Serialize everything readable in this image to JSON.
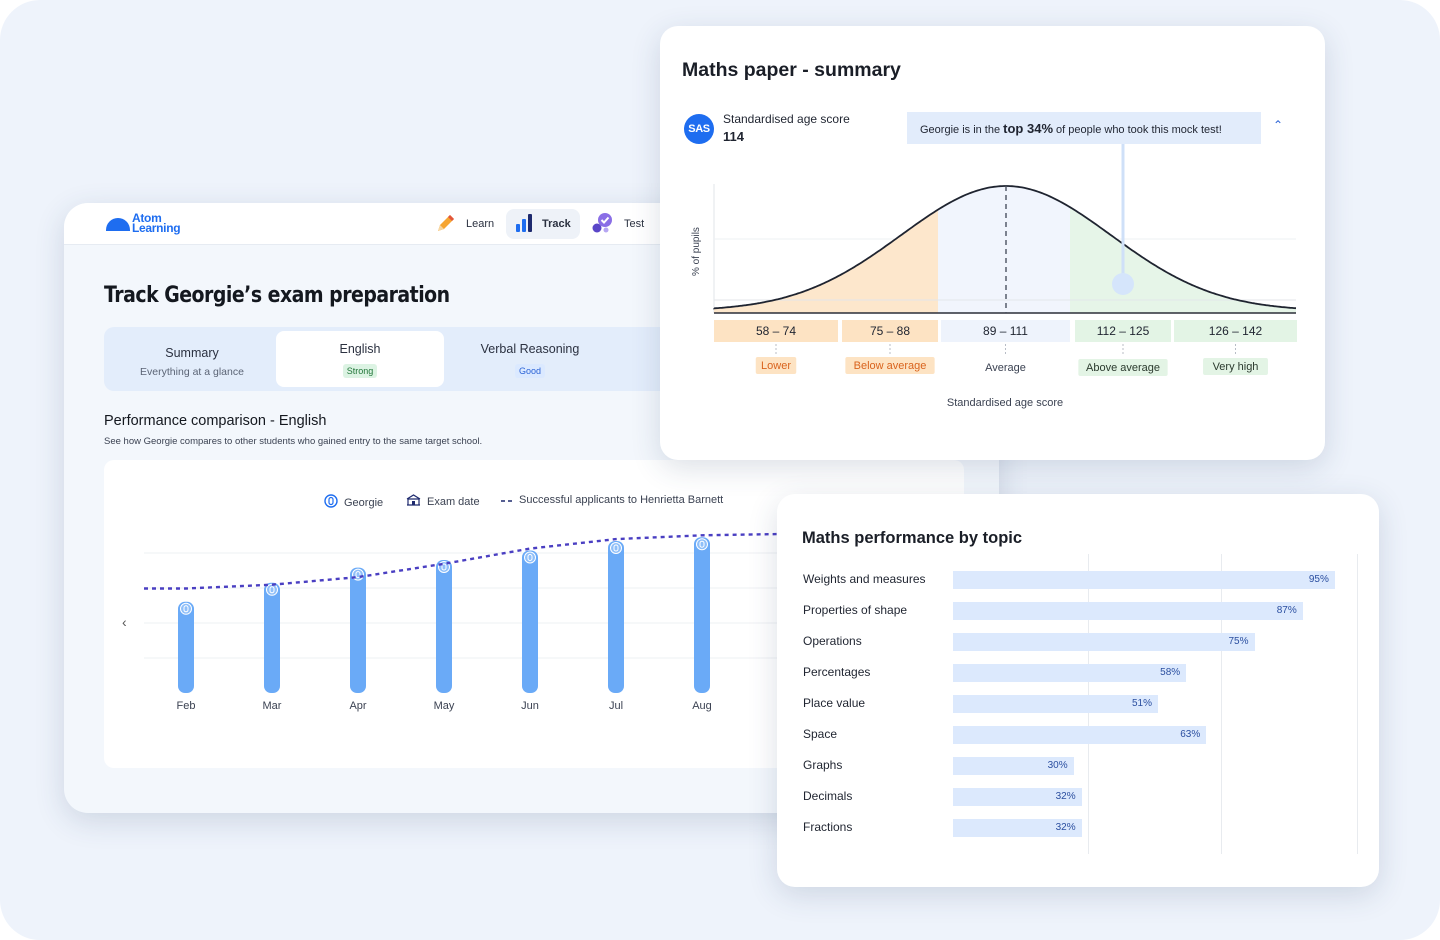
{
  "app": {
    "logo": {
      "line1": "Atom",
      "line2": "Learning"
    },
    "nav": [
      {
        "label": "Learn",
        "icon": "pencil-icon",
        "active": false
      },
      {
        "label": "Track",
        "icon": "bar-chart-icon",
        "active": true
      },
      {
        "label": "Test",
        "icon": "test-check-icon",
        "active": false
      }
    ],
    "title": "Track Georgie’s exam preparation",
    "tabs": [
      {
        "label": "Summary",
        "sub": "Everything at a glance",
        "badge": ""
      },
      {
        "label": "English",
        "sub": "",
        "badge": "Strong"
      },
      {
        "label": "Verbal Reasoning",
        "sub": "",
        "badge": "Good"
      }
    ],
    "section_title": "Performance comparison - English",
    "section_desc": "See how Georgie compares to other students who gained entry to the same target school.",
    "legend": {
      "georgie": "Georgie",
      "exam": "Exam date",
      "applicants": "Successful applicants to Henrietta Barnett"
    }
  },
  "chart_data": [
    {
      "type": "bar",
      "categories": [
        "Feb",
        "Mar",
        "Apr",
        "May",
        "Jun",
        "Jul",
        "Aug"
      ],
      "series": [
        {
          "name": "Georgie",
          "values": [
            48,
            58,
            66,
            70,
            75,
            80,
            82
          ]
        },
        {
          "name": "Successful applicants to Henrietta Barnett",
          "values": [
            55,
            57,
            61,
            68,
            76,
            81,
            83
          ]
        }
      ],
      "ylim": [
        0,
        100
      ],
      "grid": true
    },
    {
      "type": "area",
      "title": "Maths paper - summary",
      "ylabel": "% of pupils",
      "xlabel": "Standardised age score",
      "score_label": "Standardised age score",
      "score": 114,
      "bands": [
        {
          "range": "58 – 74",
          "label": "Lower",
          "color": "#fde3c3"
        },
        {
          "range": "75 – 88",
          "label": "Below average",
          "color": "#fde3c3"
        },
        {
          "range": "89 – 111",
          "label": "Average",
          "color": "#eef3fc"
        },
        {
          "range": "112 – 125",
          "label": "Above average",
          "color": "#e3f4e5"
        },
        {
          "range": "126 – 142",
          "label": "Very high",
          "color": "#e3f4e5"
        }
      ],
      "callout": {
        "pre": "Georgie is in the ",
        "strong": "top 34%",
        "post": " of people who took this mock test!"
      }
    },
    {
      "type": "bar",
      "title": "Maths performance by topic",
      "categories": [
        "Weights and measures",
        "Properties of shape",
        "Operations",
        "Percentages",
        "Place value",
        "Space",
        "Graphs",
        "Decimals",
        "Fractions"
      ],
      "values": [
        95,
        87,
        75,
        58,
        51,
        63,
        30,
        32,
        32
      ],
      "value_labels": [
        "95%",
        "87%",
        "75%",
        "58%",
        "51%",
        "63%",
        "30%",
        "32%",
        "32%"
      ],
      "xlim": [
        0,
        100
      ]
    }
  ],
  "colors": {
    "brand": "#1e6df0",
    "bar": "#6aaaf7",
    "dash": "#4a3fc2"
  }
}
